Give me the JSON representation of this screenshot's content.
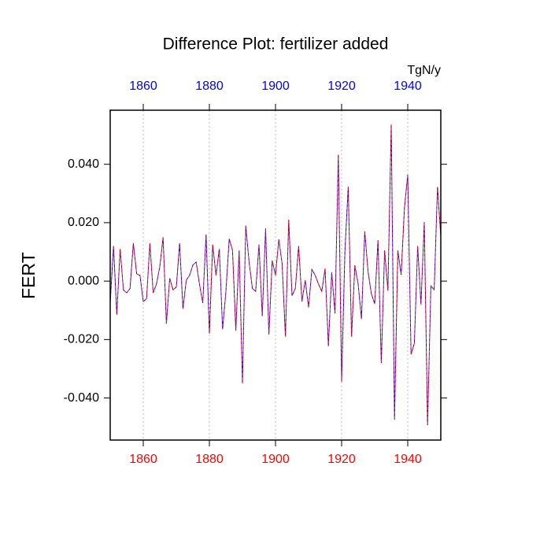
{
  "chart_data": {
    "type": "line",
    "title": "Difference Plot: fertilizer added",
    "ylabel": "FERT",
    "units_label": "TgN/y",
    "x": [
      1850,
      1851,
      1852,
      1853,
      1854,
      1855,
      1856,
      1857,
      1858,
      1859,
      1860,
      1861,
      1862,
      1863,
      1864,
      1865,
      1866,
      1867,
      1868,
      1869,
      1870,
      1871,
      1872,
      1873,
      1874,
      1875,
      1876,
      1877,
      1878,
      1879,
      1880,
      1881,
      1882,
      1883,
      1884,
      1885,
      1886,
      1887,
      1888,
      1889,
      1890,
      1891,
      1892,
      1893,
      1894,
      1895,
      1896,
      1897,
      1898,
      1899,
      1900,
      1901,
      1902,
      1903,
      1904,
      1905,
      1906,
      1907,
      1908,
      1909,
      1910,
      1911,
      1912,
      1913,
      1914,
      1915,
      1916,
      1917,
      1918,
      1919,
      1920,
      1921,
      1922,
      1923,
      1924,
      1925,
      1926,
      1927,
      1928,
      1929,
      1930,
      1931,
      1932,
      1933,
      1934,
      1935,
      1936,
      1937,
      1938,
      1939,
      1940,
      1941,
      1942,
      1943,
      1944,
      1945,
      1946,
      1947,
      1948,
      1949,
      1950
    ],
    "values": [
      -0.0075,
      0.012,
      -0.0115,
      0.011,
      -0.003,
      -0.004,
      -0.0025,
      0.013,
      0.0025,
      0.002,
      -0.007,
      -0.006,
      0.013,
      -0.004,
      -0.001,
      0.005,
      0.015,
      -0.0145,
      0.001,
      -0.003,
      -0.002,
      0.013,
      -0.0095,
      0.0003,
      0.002,
      0.0055,
      0.0065,
      -0.001,
      -0.0075,
      0.016,
      -0.018,
      0.0125,
      0.002,
      0.011,
      -0.0165,
      -0.0035,
      0.0145,
      0.0105,
      -0.017,
      0.0105,
      -0.035,
      0.019,
      0.0067,
      -0.0025,
      -0.0035,
      0.0125,
      -0.012,
      0.018,
      -0.0183,
      0.007,
      0.002,
      0.0143,
      0.006,
      -0.019,
      0.021,
      -0.005,
      -0.0025,
      0.012,
      -0.007,
      0.0003,
      -0.009,
      0.004,
      0.002,
      -0.001,
      -0.0035,
      0.0043,
      -0.0223,
      0.003,
      -0.011,
      0.0433,
      -0.0345,
      0.0105,
      0.0323,
      -0.019,
      0.0054,
      -0.001,
      -0.013,
      0.017,
      0.0032,
      -0.0043,
      -0.0078,
      0.014,
      -0.028,
      0.0105,
      -0.0032,
      0.0536,
      -0.0474,
      0.0105,
      0.0022,
      0.025,
      0.0364,
      -0.025,
      -0.0213,
      0.012,
      -0.008,
      0.0202,
      -0.0493,
      -0.0016,
      -0.003,
      0.0323,
      0.0153
    ],
    "line_colors": [
      "#0000ff",
      "#ff0000"
    ],
    "dashed": true,
    "xlim": [
      1850,
      1950
    ],
    "ylim": [
      -0.0544,
      0.0585
    ],
    "xticks": [
      1860,
      1880,
      1900,
      1920,
      1940
    ],
    "x2ticks": [
      1860,
      1880,
      1900,
      1920,
      1940
    ],
    "xtick_color": "#ff0000",
    "x2tick_color": "#0000ff",
    "yticks": [
      {
        "value": -0.04,
        "label": "-0.040"
      },
      {
        "value": -0.02,
        "label": "-0.020"
      },
      {
        "value": 0,
        "label": "0.000"
      },
      {
        "value": 0.02,
        "label": "0.020"
      },
      {
        "value": 0.04,
        "label": "0.040"
      }
    ],
    "xgrid": true
  }
}
